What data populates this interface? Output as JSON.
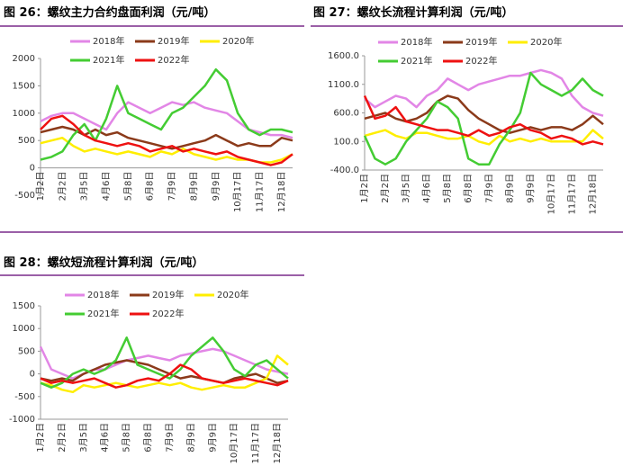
{
  "chart_data": [
    {
      "type": "line",
      "title": "图 26：螺纹主力合约盘面利润（元/吨）",
      "categories": [
        "1月2日",
        null,
        "2月2日",
        null,
        "3月5日",
        null,
        "4月6日",
        null,
        "5月8日",
        null,
        "6月8日",
        null,
        "7月9日",
        null,
        "8月9日",
        null,
        "9月9日",
        null,
        "10月17日",
        null,
        "11月17日",
        null,
        "12月18日",
        null
      ],
      "ylim": [
        -500,
        2000
      ],
      "yticks": [
        -500,
        0,
        500,
        1000,
        1500,
        2000
      ],
      "series": [
        {
          "name": "2018年",
          "color": "#e286e6",
          "values": [
            850,
            950,
            1000,
            1000,
            900,
            800,
            700,
            1000,
            1200,
            1100,
            1000,
            1100,
            1200,
            1150,
            1200,
            1100,
            1050,
            1000,
            850,
            700,
            650,
            600,
            600,
            550
          ]
        },
        {
          "name": "2019年",
          "color": "#8b3a1a",
          "values": [
            650,
            700,
            750,
            700,
            600,
            700,
            600,
            650,
            550,
            500,
            450,
            400,
            350,
            400,
            450,
            500,
            600,
            500,
            400,
            450,
            400,
            400,
            550,
            500
          ]
        },
        {
          "name": "2020年",
          "color": "#ffee00",
          "values": [
            450,
            500,
            550,
            400,
            300,
            350,
            300,
            250,
            300,
            250,
            200,
            300,
            250,
            350,
            250,
            200,
            150,
            200,
            150,
            150,
            100,
            100,
            150,
            250
          ]
        },
        {
          "name": "2021年",
          "color": "#44cc33",
          "values": [
            150,
            200,
            300,
            600,
            800,
            500,
            900,
            1500,
            1000,
            900,
            800,
            700,
            1000,
            1100,
            1300,
            1500,
            1800,
            1600,
            1000,
            700,
            600,
            700,
            700,
            650
          ]
        },
        {
          "name": "2022年",
          "color": "#ee1111",
          "values": [
            700,
            900,
            950,
            800,
            600,
            500,
            450,
            400,
            450,
            400,
            300,
            350,
            400,
            300,
            350,
            300,
            250,
            300,
            200,
            150,
            100,
            50,
            100,
            250
          ]
        }
      ]
    },
    {
      "type": "line",
      "title": "图 27：螺纹长流程计算利润（元/吨）",
      "categories": [
        "1月2日",
        null,
        "2月2日",
        null,
        "3月5日",
        null,
        "4月6日",
        null,
        "5月8日",
        null,
        "6月8日",
        null,
        "7月9日",
        null,
        "8月9日",
        null,
        "9月9日",
        null,
        "10月17日",
        null,
        "11月17日",
        null,
        "12月18日",
        null
      ],
      "ylim": [
        -400,
        1600
      ],
      "yticks": [
        {
          "value": -400,
          "label": "-400.0"
        },
        {
          "value": 100,
          "label": "100.0"
        },
        {
          "value": 600,
          "label": "600.0"
        },
        {
          "value": 1100,
          "label": "1100.0"
        },
        {
          "value": 1600,
          "label": "1600.0"
        }
      ],
      "series": [
        {
          "name": "2018年",
          "color": "#e286e6",
          "values": [
            850,
            700,
            800,
            900,
            850,
            700,
            900,
            1000,
            1200,
            1100,
            1000,
            1100,
            1150,
            1200,
            1250,
            1250,
            1300,
            1350,
            1300,
            1200,
            900,
            700,
            600,
            550
          ]
        },
        {
          "name": "2019年",
          "color": "#8b3a1a",
          "values": [
            500,
            550,
            600,
            500,
            450,
            500,
            600,
            800,
            900,
            850,
            650,
            500,
            400,
            300,
            250,
            300,
            350,
            300,
            350,
            350,
            300,
            400,
            550,
            400
          ]
        },
        {
          "name": "2020年",
          "color": "#ffee00",
          "values": [
            200,
            250,
            300,
            200,
            150,
            250,
            250,
            200,
            150,
            150,
            200,
            100,
            50,
            200,
            100,
            150,
            100,
            150,
            100,
            100,
            100,
            100,
            300,
            150
          ]
        },
        {
          "name": "2021年",
          "color": "#44cc33",
          "values": [
            200,
            -200,
            -300,
            -200,
            100,
            300,
            500,
            800,
            700,
            500,
            -200,
            -300,
            -300,
            50,
            300,
            600,
            1300,
            1100,
            1000,
            900,
            1000,
            1200,
            1000,
            900
          ]
        },
        {
          "name": "2022年",
          "color": "#ee1111",
          "values": [
            900,
            500,
            550,
            700,
            450,
            400,
            350,
            300,
            300,
            250,
            200,
            300,
            200,
            250,
            350,
            400,
            300,
            250,
            150,
            200,
            150,
            50,
            100,
            50
          ]
        }
      ]
    },
    {
      "type": "line",
      "title": "图 28：螺纹短流程计算利润（元/吨）",
      "categories": [
        "1月2日",
        null,
        "2月2日",
        null,
        "3月5日",
        null,
        "4月6日",
        null,
        "5月8日",
        null,
        "6月8日",
        null,
        "7月9日",
        null,
        "8月9日",
        null,
        "9月9日",
        null,
        "10月17日",
        null,
        "11月17日",
        null,
        "12月18日",
        null
      ],
      "ylim": [
        -1000,
        1500
      ],
      "yticks": [
        -1000,
        -500,
        0,
        500,
        1000,
        1500
      ],
      "series": [
        {
          "name": "2018年",
          "color": "#e286e6",
          "values": [
            600,
            100,
            0,
            -100,
            0,
            100,
            100,
            200,
            300,
            350,
            400,
            350,
            300,
            400,
            450,
            500,
            550,
            500,
            400,
            300,
            200,
            100,
            50,
            0
          ]
        },
        {
          "name": "2019年",
          "color": "#8b3a1a",
          "values": [
            -100,
            -150,
            -100,
            -150,
            0,
            100,
            200,
            250,
            300,
            250,
            200,
            100,
            0,
            -100,
            -50,
            -100,
            -150,
            -200,
            -100,
            -50,
            0,
            -100,
            -200,
            -150
          ]
        },
        {
          "name": "2020年",
          "color": "#ffee00",
          "values": [
            -200,
            -250,
            -350,
            -400,
            -250,
            -300,
            -250,
            -200,
            -250,
            -300,
            -250,
            -200,
            -250,
            -200,
            -300,
            -350,
            -300,
            -250,
            -300,
            -300,
            -200,
            -100,
            400,
            200
          ]
        },
        {
          "name": "2021年",
          "color": "#44cc33",
          "values": [
            -200,
            -300,
            -200,
            0,
            100,
            0,
            100,
            300,
            800,
            200,
            100,
            0,
            -100,
            100,
            400,
            600,
            800,
            500,
            100,
            -50,
            200,
            300,
            100,
            -100
          ]
        },
        {
          "name": "2022年",
          "color": "#ee1111",
          "values": [
            -100,
            -200,
            -150,
            -200,
            -150,
            -100,
            -200,
            -300,
            -250,
            -150,
            -100,
            -150,
            0,
            200,
            100,
            -100,
            -150,
            -200,
            -150,
            -100,
            -150,
            -200,
            -250,
            -150
          ]
        }
      ]
    }
  ]
}
